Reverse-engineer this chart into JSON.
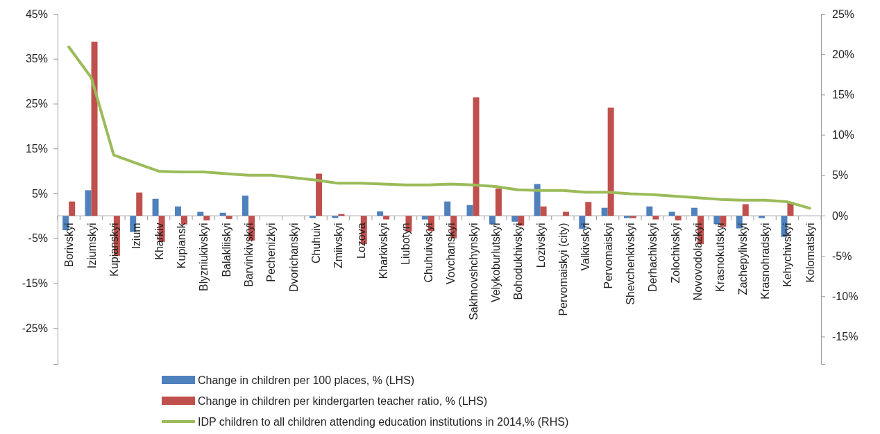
{
  "chart_data": {
    "type": "bar",
    "categories": [
      "Borivskyi",
      "Iziumskyi",
      "Kupianskyi",
      "Izium",
      "Kharkiv",
      "Kupiansk",
      "Blyzniukivskyi",
      "Balakliiskyi",
      "Barvinkivskyi",
      "Pechenizkyi",
      "Dvorichanskyi",
      "Chuhuiv",
      "Zmiivskyi",
      "Lozova",
      "Kharkivskyi",
      "Liubotyn",
      "Chuhuivskyi",
      "Vovchanskyi",
      "Sakhnovshchynskyi",
      "Velykoburlutskyi",
      "Bohodukhivskyi",
      "Lozivskyi",
      "Pervomaiskyi (city)",
      "Valkivskyi",
      "Pervomaiskyi",
      "Shevchenkivskyi",
      "Derhachivskyi",
      "Zolochivskyi",
      "Novovodolazkyi",
      "Krasnokutskyi",
      "Zachepylivskyi",
      "Krasnohradskyi",
      "Kehychivskyi",
      "Kolomatskyi"
    ],
    "series": [
      {
        "name": "Change in children per 100 places, % (LHS)",
        "color": "#4f81bd",
        "values": [
          -3.2,
          5.7,
          0,
          -3.6,
          3.8,
          2.1,
          0.9,
          0.7,
          4.5,
          0,
          0,
          -0.5,
          -0.5,
          0,
          1.0,
          0,
          -0.8,
          3.2,
          2.4,
          -1.9,
          -1.3,
          7.1,
          0,
          -2.9,
          1.8,
          -0.5,
          2.1,
          0.9,
          1.8,
          -1.8,
          -2.8,
          -0.5,
          -4.7,
          0
        ]
      },
      {
        "name": "Change in children per kindergarten teacher ratio, % (LHS)",
        "color": "#c0504d",
        "values": [
          3.2,
          38.8,
          -8.9,
          5.2,
          -5.8,
          -1.9,
          -1.0,
          -0.7,
          -5.5,
          0,
          0,
          9.4,
          0.4,
          -6.3,
          -0.8,
          -3.5,
          -3.4,
          -5.0,
          26.4,
          6.1,
          -2.2,
          2.1,
          0.9,
          3.1,
          24.1,
          -0.5,
          -0.8,
          -1.0,
          -6.3,
          -2.4,
          2.6,
          0,
          3.1,
          0
        ]
      },
      {
        "name": "IDP children to all children attending education institutions in 2014,% (RHS)",
        "type": "line",
        "axis": "y2",
        "color": "#9bbb59",
        "values": [
          20.9,
          17.1,
          7.5,
          6.5,
          5.5,
          5.4,
          5.4,
          5.2,
          5.0,
          5.0,
          4.7,
          4.4,
          4.0,
          4.0,
          3.9,
          3.8,
          3.8,
          3.9,
          3.8,
          3.6,
          3.2,
          3.1,
          3.1,
          2.9,
          2.9,
          2.7,
          2.6,
          2.4,
          2.2,
          2.0,
          1.9,
          1.9,
          1.7,
          0.9
        ]
      }
    ],
    "ylim": [
      -33,
      45
    ],
    "yticks": [
      {
        "value": 45,
        "label": "45%"
      },
      {
        "value": 35,
        "label": "35%"
      },
      {
        "value": 25,
        "label": "25%"
      },
      {
        "value": 15,
        "label": "15%"
      },
      {
        "value": 5,
        "label": "5%"
      },
      {
        "value": -5,
        "label": "-5%"
      },
      {
        "value": -15,
        "label": "-15%"
      },
      {
        "value": -25,
        "label": "-25%"
      }
    ],
    "y2lim": [
      -18.4,
      25
    ],
    "y2ticks": [
      {
        "value": 25,
        "label": "25%"
      },
      {
        "value": 20,
        "label": "20%"
      },
      {
        "value": 15,
        "label": "15%"
      },
      {
        "value": 10,
        "label": "10%"
      },
      {
        "value": 5,
        "label": "5%"
      },
      {
        "value": 0,
        "label": "0%"
      },
      {
        "value": -5,
        "label": "-5%"
      },
      {
        "value": -10,
        "label": "-10%"
      },
      {
        "value": -15,
        "label": "-15%"
      }
    ],
    "legend": "bottom",
    "grid": false,
    "line_style": "solid",
    "marker": "none"
  }
}
